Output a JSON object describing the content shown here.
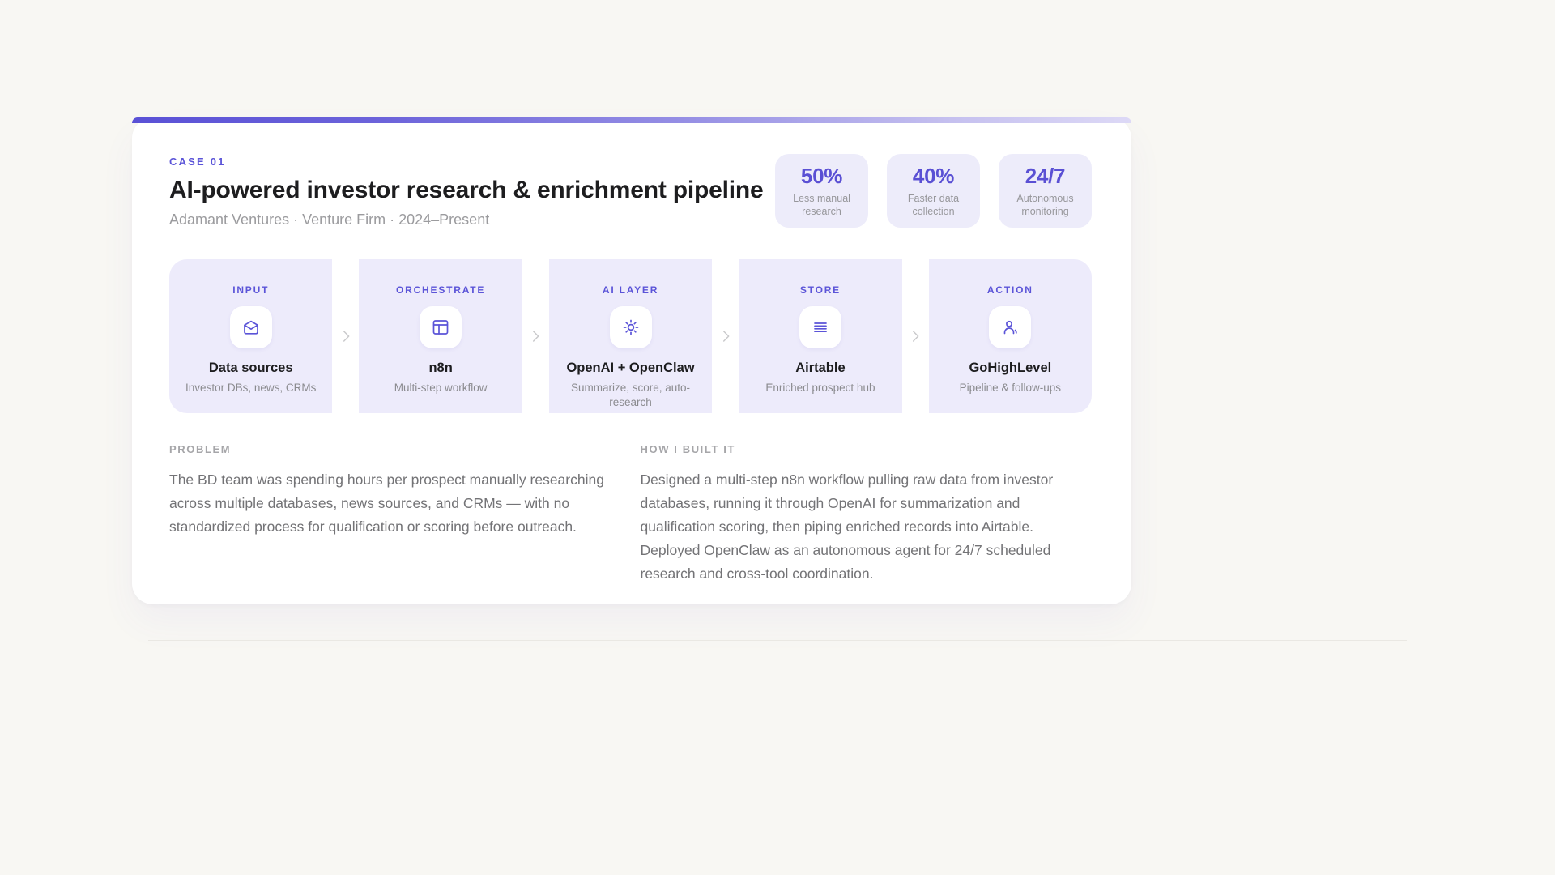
{
  "accent_color": "#5b54d8",
  "page_bg": "#f8f7f3",
  "stage_bg": "#edebfb",
  "card": {
    "kicker": "CASE 01",
    "title": "AI-powered investor research & enrichment pipeline",
    "subtitle": "Adamant Ventures · Venture Firm · 2024–Present"
  },
  "stats": [
    {
      "value": "50%",
      "label": "Less manual research"
    },
    {
      "value": "40%",
      "label": "Faster data collection"
    },
    {
      "value": "24/7",
      "label": "Autonomous monitoring"
    }
  ],
  "pipeline": [
    {
      "stage": "INPUT",
      "icon": "mail-open-icon",
      "name": "Data sources",
      "desc": "Investor DBs, news, CRMs"
    },
    {
      "stage": "ORCHESTRATE",
      "icon": "table-icon",
      "name": "n8n",
      "desc": "Multi-step workflow"
    },
    {
      "stage": "AI LAYER",
      "icon": "sun-icon",
      "name": "OpenAI + OpenClaw",
      "desc": "Summarize, score, auto-research"
    },
    {
      "stage": "STORE",
      "icon": "rows-icon",
      "name": "Airtable",
      "desc": "Enriched prospect hub"
    },
    {
      "stage": "ACTION",
      "icon": "person-icon",
      "name": "GoHighLevel",
      "desc": "Pipeline & follow-ups"
    }
  ],
  "flow_arrow_icon": "chevron-right-icon",
  "sections": [
    {
      "heading": "PROBLEM",
      "body": "The BD team was spending hours per prospect manually researching across multiple databases, news sources, and CRMs — with no standardized process for qualification or scoring before outreach."
    },
    {
      "heading": "HOW I BUILT IT",
      "body": "Designed a multi-step n8n workflow pulling raw data from investor databases, running it through OpenAI for summarization and qualification scoring, then piping enriched records into Airtable. Deployed OpenClaw as an autonomous agent for 24/7 scheduled research and cross-tool coordination."
    }
  ]
}
